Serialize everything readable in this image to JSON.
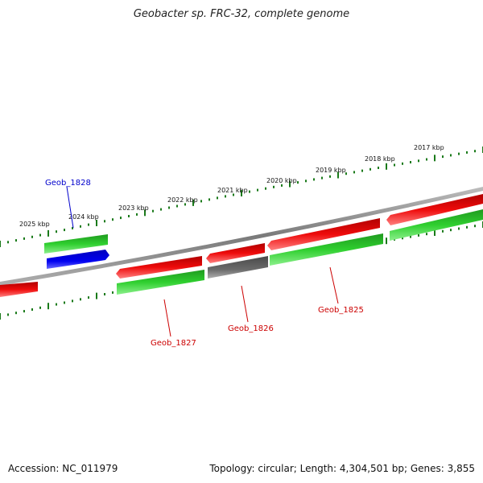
{
  "title": "Geobacter sp. FRC-32, complete genome",
  "footer": {
    "accession": "Accession: NC_011979",
    "summary": "Topology: circular; Length: 4,304,501 bp; Genes: 3,855"
  },
  "colors": {
    "forward_gene": "#2ecc2e",
    "reverse_gene": "#e00000",
    "selected_gene": "#0000ee",
    "other_gene": "#666666",
    "backbone": "#888888",
    "ticks": "#1a7a1a"
  },
  "ruler": {
    "unit": "kbp",
    "labels": [
      "2025 kbp",
      "2024 kbp",
      "2023 kbp",
      "2022 kbp",
      "2021 kbp",
      "2020 kbp",
      "2019 kbp",
      "2018 kbp",
      "2017 kbp"
    ]
  },
  "gene_labels": [
    {
      "name": "Geob_1828",
      "color": "#0000cc"
    },
    {
      "name": "Geob_1827",
      "color": "#cc0000"
    },
    {
      "name": "Geob_1826",
      "color": "#cc0000"
    },
    {
      "name": "Geob_1825",
      "color": "#cc0000"
    }
  ]
}
